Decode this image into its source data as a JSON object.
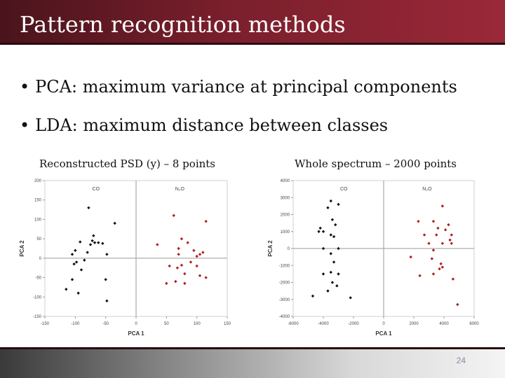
{
  "slide": {
    "title": "Pattern recognition methods",
    "bullets": [
      "PCA: maximum variance at principal components",
      "LDA: maximum distance between classes"
    ],
    "bullet_glyph": "•",
    "page_number": "24"
  },
  "colors": {
    "title_bar": "#7a1f2c",
    "co_points": "#111111",
    "n2o_points": "#b01c1c"
  },
  "chart_data": [
    {
      "type": "scatter",
      "title": "Reconstructed PSD (y) – 8 points",
      "xlabel": "PCA 1",
      "ylabel": "PCA 2",
      "xlim": [
        -150,
        150
      ],
      "ylim": [
        -150,
        200
      ],
      "xticks": [
        -150,
        -100,
        -50,
        0,
        50,
        100,
        150
      ],
      "yticks": [
        -150,
        -100,
        -50,
        0,
        50,
        100,
        150,
        200
      ],
      "grid": false,
      "series": [
        {
          "name": "CO",
          "points": [
            [
              -78,
              130
            ],
            [
              -35,
              90
            ],
            [
              -115,
              -80
            ],
            [
              -105,
              -55
            ],
            [
              -95,
              -90
            ],
            [
              -100,
              20
            ],
            [
              -105,
              10
            ],
            [
              -98,
              -10
            ],
            [
              -102,
              -15
            ],
            [
              -90,
              -30
            ],
            [
              -85,
              -5
            ],
            [
              -80,
              15
            ],
            [
              -75,
              35
            ],
            [
              -72,
              45
            ],
            [
              -70,
              58
            ],
            [
              -68,
              40
            ],
            [
              -62,
              40
            ],
            [
              -55,
              38
            ],
            [
              -48,
              10
            ],
            [
              -50,
              -55
            ],
            [
              -48,
              -110
            ],
            [
              -92,
              42
            ]
          ]
        },
        {
          "name": "N₂O",
          "points": [
            [
              62,
              110
            ],
            [
              115,
              95
            ],
            [
              75,
              50
            ],
            [
              85,
              40
            ],
            [
              35,
              35
            ],
            [
              70,
              25
            ],
            [
              70,
              10
            ],
            [
              95,
              20
            ],
            [
              100,
              5
            ],
            [
              105,
              10
            ],
            [
              110,
              15
            ],
            [
              90,
              -10
            ],
            [
              75,
              -18
            ],
            [
              55,
              -20
            ],
            [
              68,
              -25
            ],
            [
              80,
              -40
            ],
            [
              100,
              -20
            ],
            [
              105,
              -45
            ],
            [
              115,
              -50
            ],
            [
              50,
              -65
            ],
            [
              65,
              -60
            ],
            [
              80,
              -65
            ]
          ]
        }
      ]
    },
    {
      "type": "scatter",
      "title": "Whole spectrum – 2000 points",
      "xlabel": "PCA 1",
      "ylabel": "PCA 2",
      "xlim": [
        -6000,
        6000
      ],
      "ylim": [
        -4000,
        4000
      ],
      "xticks": [
        -6000,
        -4000,
        -2000,
        0,
        2000,
        4000,
        6000
      ],
      "yticks": [
        -4000,
        -3000,
        -2000,
        -1000,
        0,
        1000,
        2000,
        3000,
        4000
      ],
      "grid": false,
      "series": [
        {
          "name": "CO",
          "points": [
            [
              -3500,
              2800
            ],
            [
              -3000,
              2600
            ],
            [
              -3700,
              2400
            ],
            [
              -3400,
              1700
            ],
            [
              -3200,
              1400
            ],
            [
              -4200,
              1200
            ],
            [
              -4300,
              1000
            ],
            [
              -4000,
              1000
            ],
            [
              -3500,
              800
            ],
            [
              -3300,
              700
            ],
            [
              -4000,
              0
            ],
            [
              -3500,
              -300
            ],
            [
              -3000,
              0
            ],
            [
              -3300,
              -800
            ],
            [
              -4000,
              -1500
            ],
            [
              -3500,
              -1400
            ],
            [
              -3000,
              -1500
            ],
            [
              -3400,
              -2000
            ],
            [
              -3700,
              -2500
            ],
            [
              -3100,
              -2200
            ],
            [
              -4700,
              -2800
            ],
            [
              -2200,
              -2900
            ]
          ]
        },
        {
          "name": "N₂O",
          "points": [
            [
              3900,
              2500
            ],
            [
              2300,
              1600
            ],
            [
              3300,
              1600
            ],
            [
              4300,
              1400
            ],
            [
              3600,
              1200
            ],
            [
              4100,
              1100
            ],
            [
              2700,
              800
            ],
            [
              3500,
              800
            ],
            [
              4500,
              800
            ],
            [
              4400,
              500
            ],
            [
              3000,
              300
            ],
            [
              3900,
              300
            ],
            [
              4500,
              300
            ],
            [
              3300,
              -100
            ],
            [
              1800,
              -500
            ],
            [
              3200,
              -600
            ],
            [
              3800,
              -900
            ],
            [
              3900,
              -1100
            ],
            [
              3700,
              -1200
            ],
            [
              3300,
              -1500
            ],
            [
              2400,
              -1600
            ],
            [
              4600,
              -1800
            ],
            [
              4900,
              -3300
            ]
          ]
        }
      ]
    }
  ]
}
